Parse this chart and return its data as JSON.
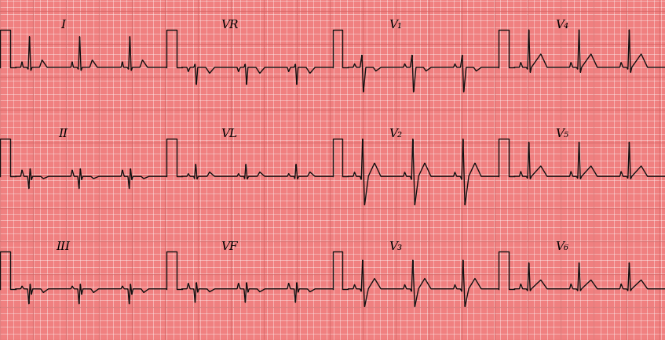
{
  "bg_color": "#F08080",
  "grid_line_color": "#FFFFFF",
  "grid_minor_alpha": 0.5,
  "grid_major_alpha": 0.8,
  "line_color": "#111111",
  "line_width": 1.0,
  "fig_width": 8.47,
  "fig_height": 4.35,
  "dpi": 100,
  "rows": 3,
  "cols": 4,
  "lead_labels": [
    [
      "I",
      "VR",
      "V₁",
      "V₄"
    ],
    [
      "II",
      "VL",
      "V₂",
      "V₅"
    ],
    [
      "III",
      "VF",
      "V₃",
      "V₆"
    ]
  ],
  "label_fontsize": 11,
  "row_label_subscript_fontsize": 8
}
